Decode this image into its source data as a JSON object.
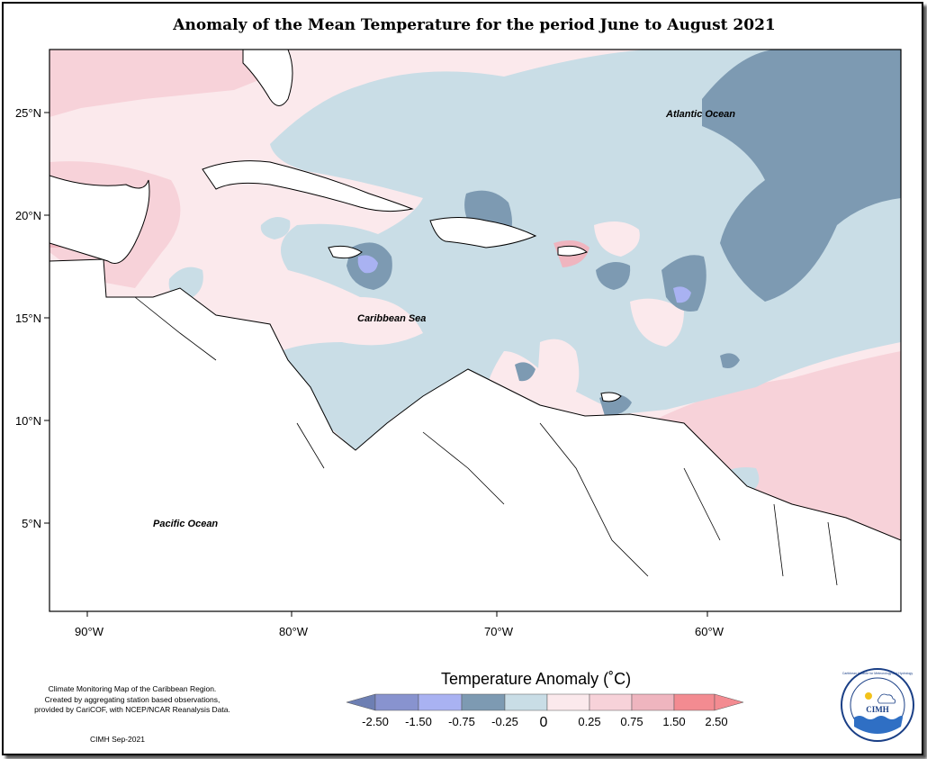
{
  "title": "Anomaly of the Mean Temperature for the period June to August 2021",
  "axes": {
    "lat_labels": [
      "25°N",
      "20°N",
      "15°N",
      "10°N",
      "5°N"
    ],
    "lon_labels": [
      "90°W",
      "80°W",
      "70°W",
      "60°W"
    ]
  },
  "map_labels": {
    "atlantic": "Atlantic Ocean",
    "caribbean": "Caribbean Sea",
    "pacific": "Pacific Ocean"
  },
  "legend": {
    "title": "Temperature Anomaly (˚C)",
    "ticks": [
      "-2.50",
      "-1.50",
      "-0.75",
      "-0.25",
      "0",
      "0.25",
      "0.75",
      "1.50",
      "2.50"
    ],
    "colors": {
      "lt_minus_2_5": "#6d7fb3",
      "m2_5_m1_5": "#8893cf",
      "m1_5_m0_75": "#a9b2f2",
      "m0_75_m0_25": "#7d9ab2",
      "m0_25_0": "#c9dde6",
      "z_0_25": "#fbe9ec",
      "p0_25_0_75": "#f7d2d9",
      "p0_75_1_5": "#efb5bf",
      "gt_1_5": "#f38b91"
    }
  },
  "footnote": {
    "lines": [
      "Climate Monitoring Map of the Caribbean Region.",
      "Created by aggregating station based observations,",
      "provided by CariCOF, with NCEP/NCAR Reanalysis Data."
    ],
    "stamp": "CIMH Sep-2021"
  },
  "logo": {
    "arc_text": "Caribbean Institute for Meteorology and Hydrology",
    "abbr": "CIMH"
  }
}
